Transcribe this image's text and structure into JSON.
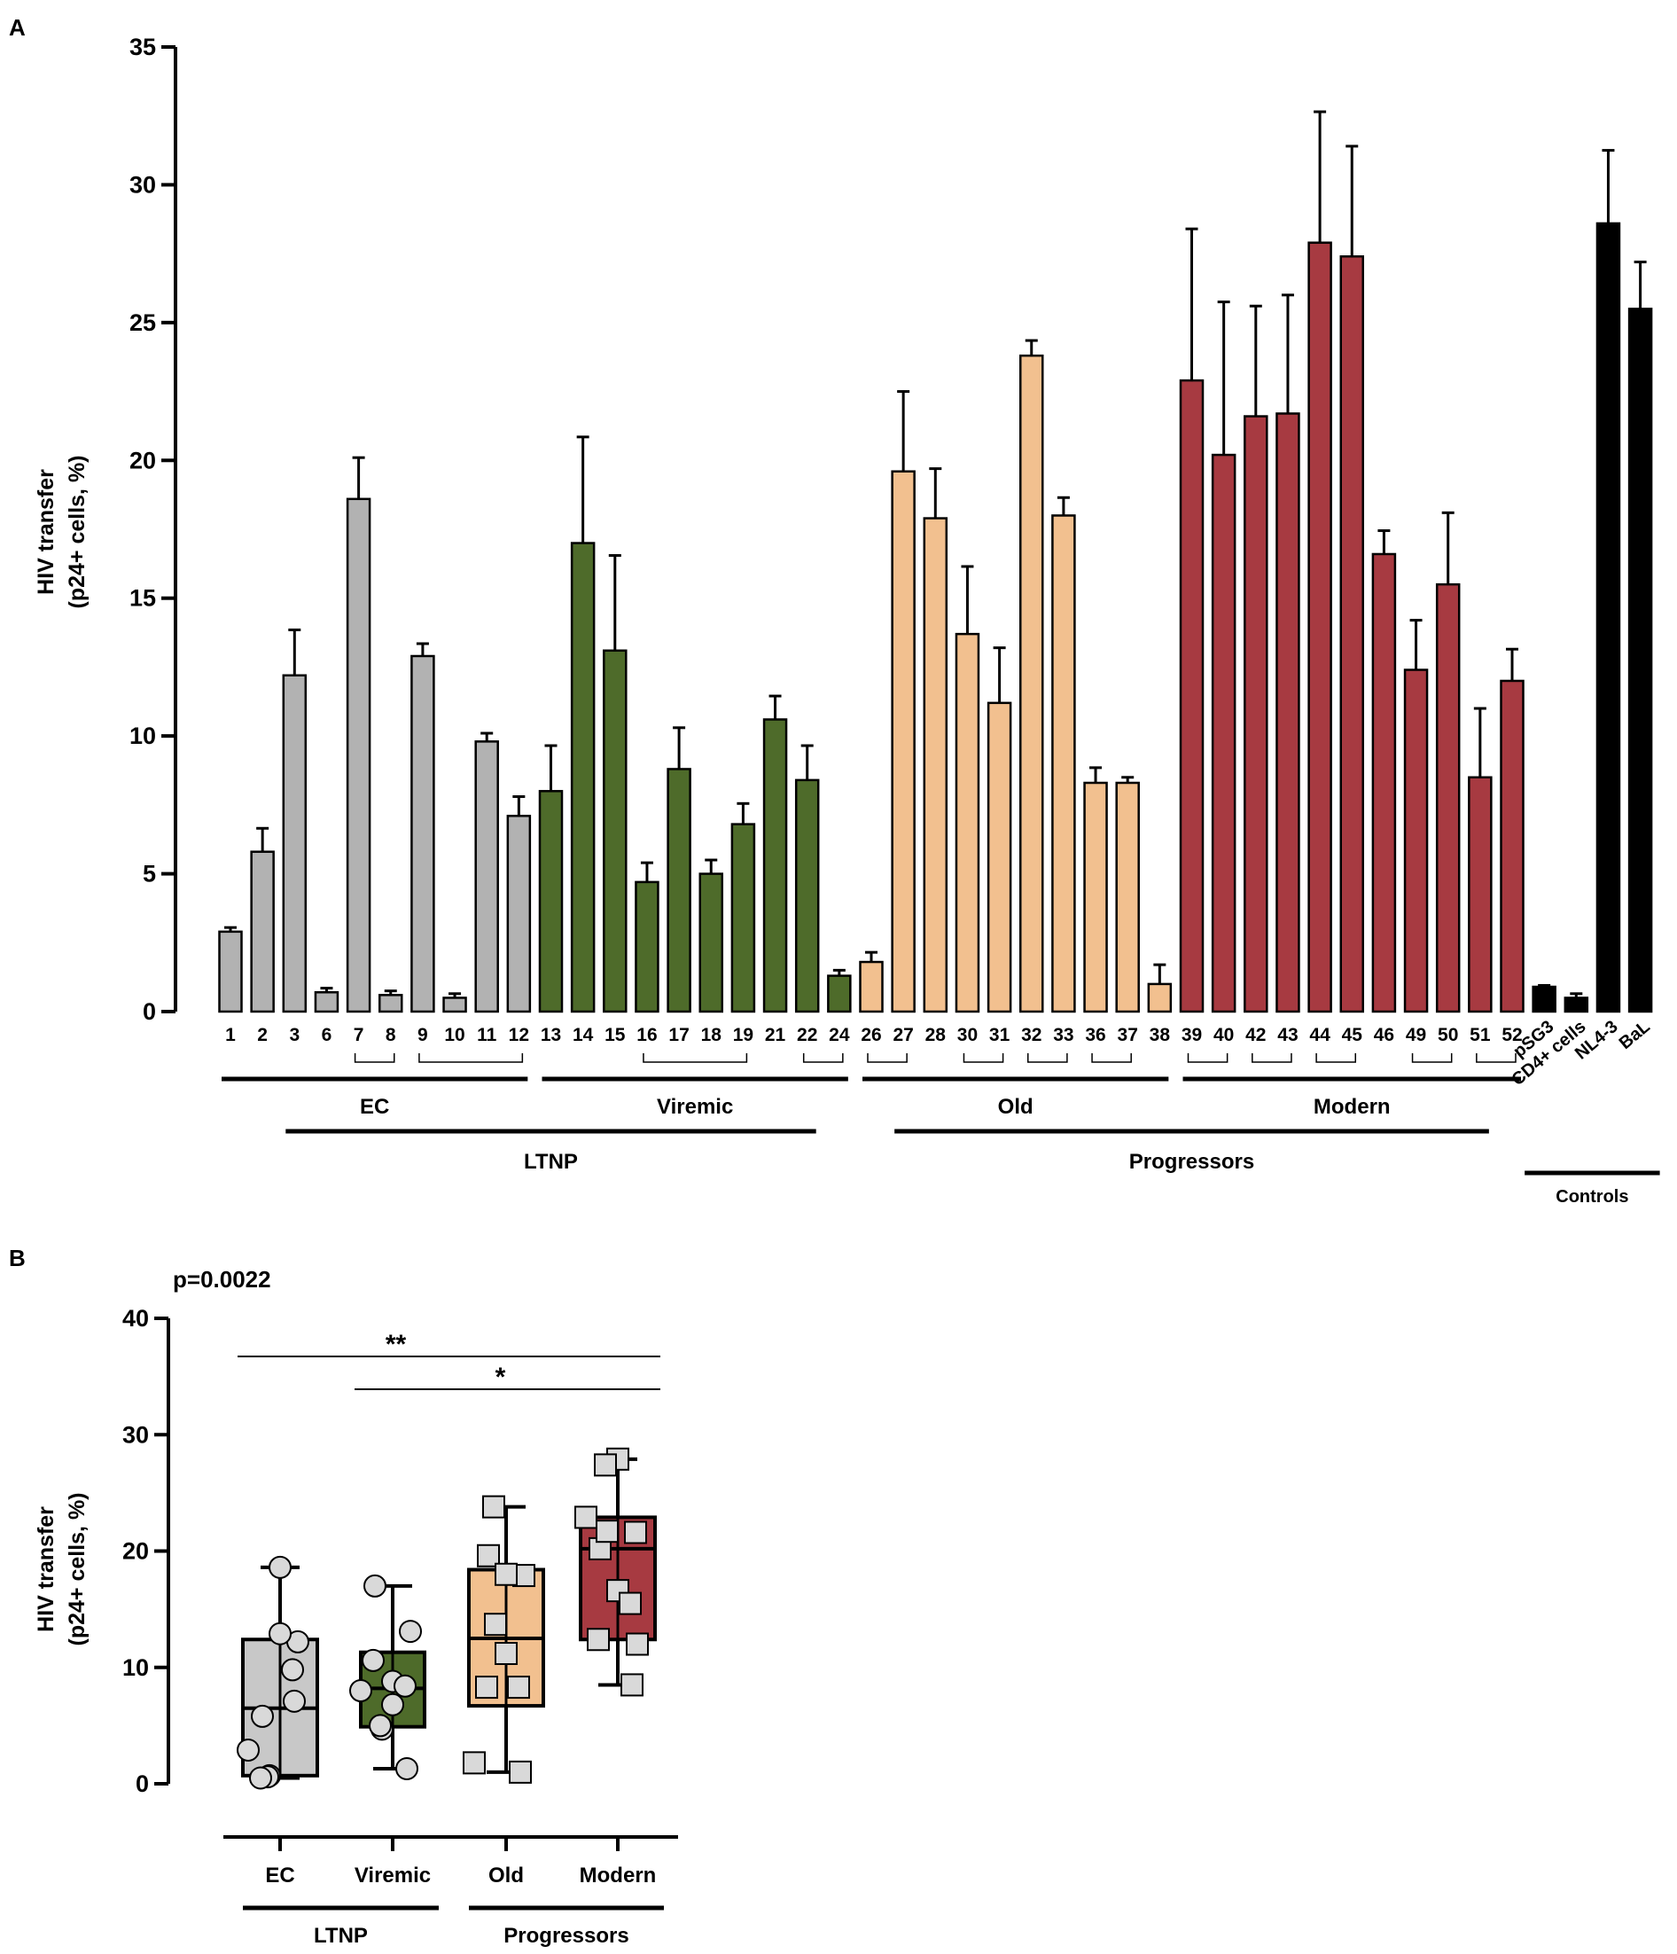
{
  "chart_data": [
    {
      "type": "bar",
      "panel": "A",
      "ylabel_line1": "HIV transfer",
      "ylabel_line2": "(p24+ cells, %)",
      "ylim": [
        0,
        35
      ],
      "yticks": [
        "0",
        "5",
        "10",
        "15",
        "20",
        "25",
        "30",
        "35"
      ],
      "colors": {
        "EC": "#b2b2b2",
        "Viremic": "#4e6b2a",
        "Old": "#f2c08f",
        "Modern": "#a73a41",
        "Controls": "#000000"
      },
      "bars": [
        {
          "label": "1",
          "value": 2.9,
          "err": 0.15,
          "group": "EC"
        },
        {
          "label": "2",
          "value": 5.8,
          "err": 0.85,
          "group": "EC"
        },
        {
          "label": "3",
          "value": 12.2,
          "err": 1.65,
          "group": "EC"
        },
        {
          "label": "6",
          "value": 0.7,
          "err": 0.15,
          "group": "EC"
        },
        {
          "label": "7",
          "value": 18.6,
          "err": 1.5,
          "group": "EC"
        },
        {
          "label": "8",
          "value": 0.6,
          "err": 0.15,
          "group": "EC"
        },
        {
          "label": "9",
          "value": 12.9,
          "err": 0.45,
          "group": "EC"
        },
        {
          "label": "10",
          "value": 0.5,
          "err": 0.15,
          "group": "EC"
        },
        {
          "label": "11",
          "value": 9.8,
          "err": 0.3,
          "group": "EC"
        },
        {
          "label": "12",
          "value": 7.1,
          "err": 0.7,
          "group": "EC"
        },
        {
          "label": "13",
          "value": 8.0,
          "err": 1.65,
          "group": "Viremic"
        },
        {
          "label": "14",
          "value": 17.0,
          "err": 3.85,
          "group": "Viremic"
        },
        {
          "label": "15",
          "value": 13.1,
          "err": 3.45,
          "group": "Viremic"
        },
        {
          "label": "16",
          "value": 4.7,
          "err": 0.7,
          "group": "Viremic"
        },
        {
          "label": "17",
          "value": 8.8,
          "err": 1.5,
          "group": "Viremic"
        },
        {
          "label": "18",
          "value": 5.0,
          "err": 0.5,
          "group": "Viremic"
        },
        {
          "label": "19",
          "value": 6.8,
          "err": 0.75,
          "group": "Viremic"
        },
        {
          "label": "21",
          "value": 10.6,
          "err": 0.85,
          "group": "Viremic"
        },
        {
          "label": "22",
          "value": 8.4,
          "err": 1.25,
          "group": "Viremic"
        },
        {
          "label": "24",
          "value": 1.3,
          "err": 0.2,
          "group": "Viremic"
        },
        {
          "label": "26",
          "value": 1.8,
          "err": 0.35,
          "group": "Old"
        },
        {
          "label": "27",
          "value": 19.6,
          "err": 2.9,
          "group": "Old"
        },
        {
          "label": "28",
          "value": 17.9,
          "err": 1.8,
          "group": "Old"
        },
        {
          "label": "30",
          "value": 13.7,
          "err": 2.45,
          "group": "Old"
        },
        {
          "label": "31",
          "value": 11.2,
          "err": 2.0,
          "group": "Old"
        },
        {
          "label": "32",
          "value": 23.8,
          "err": 0.55,
          "group": "Old"
        },
        {
          "label": "33",
          "value": 18.0,
          "err": 0.65,
          "group": "Old"
        },
        {
          "label": "36",
          "value": 8.3,
          "err": 0.55,
          "group": "Old"
        },
        {
          "label": "37",
          "value": 8.3,
          "err": 0.2,
          "group": "Old"
        },
        {
          "label": "38",
          "value": 1.0,
          "err": 0.7,
          "group": "Old"
        },
        {
          "label": "39",
          "value": 22.9,
          "err": 5.5,
          "group": "Modern"
        },
        {
          "label": "40",
          "value": 20.2,
          "err": 5.55,
          "group": "Modern"
        },
        {
          "label": "42",
          "value": 21.6,
          "err": 4.0,
          "group": "Modern"
        },
        {
          "label": "43",
          "value": 21.7,
          "err": 4.3,
          "group": "Modern"
        },
        {
          "label": "44",
          "value": 27.9,
          "err": 4.75,
          "group": "Modern"
        },
        {
          "label": "45",
          "value": 27.4,
          "err": 4.0,
          "group": "Modern"
        },
        {
          "label": "46",
          "value": 16.6,
          "err": 0.85,
          "group": "Modern"
        },
        {
          "label": "49",
          "value": 12.4,
          "err": 1.8,
          "group": "Modern"
        },
        {
          "label": "50",
          "value": 15.5,
          "err": 2.6,
          "group": "Modern"
        },
        {
          "label": "51",
          "value": 8.5,
          "err": 2.5,
          "group": "Modern"
        },
        {
          "label": "52",
          "value": 12.0,
          "err": 1.15,
          "group": "Modern"
        },
        {
          "label": "pSG3",
          "value": 0.9,
          "err": 0.05,
          "group": "Controls"
        },
        {
          "label": "CD4+ cells",
          "value": 0.5,
          "err": 0.15,
          "group": "Controls"
        },
        {
          "label": "NL4-3",
          "value": 28.6,
          "err": 2.65,
          "group": "Controls"
        },
        {
          "label": "BaL",
          "value": 25.5,
          "err": 1.7,
          "group": "Controls"
        }
      ],
      "pair_brackets": [
        [
          "7",
          "8"
        ],
        [
          "9",
          "12"
        ],
        [
          "16",
          "19"
        ],
        [
          "22",
          "24"
        ],
        [
          "26",
          "27"
        ],
        [
          "30",
          "31"
        ],
        [
          "32",
          "33"
        ],
        [
          "36",
          "37"
        ],
        [
          "39",
          "40"
        ],
        [
          "42",
          "43"
        ],
        [
          "44",
          "45"
        ],
        [
          "49",
          "50"
        ],
        [
          "51",
          "52"
        ]
      ],
      "group_labels": [
        {
          "label": "EC",
          "from": "1",
          "to": "12"
        },
        {
          "label": "Viremic",
          "from": "13",
          "to": "24"
        },
        {
          "label": "Old",
          "from": "26",
          "to": "38"
        },
        {
          "label": "Modern",
          "from": "39",
          "to": "52"
        }
      ],
      "super_labels": [
        {
          "label": "LTNP",
          "from": "3",
          "to": "22"
        },
        {
          "label": "Progressors",
          "from": "27",
          "to": "51"
        },
        {
          "label": "Controls",
          "from": "pSG3",
          "to": "BaL"
        }
      ]
    },
    {
      "type": "box",
      "panel": "B",
      "ylabel_line1": "HIV transfer",
      "ylabel_line2": "(p24+ cells, %)",
      "ylim": [
        0,
        40
      ],
      "yticks": [
        "0",
        "10",
        "20",
        "30",
        "40"
      ],
      "stat_text": "p=0.0022",
      "groups": [
        {
          "name": "EC",
          "color": "#c8c8c8",
          "marker": "circle",
          "min": 0.5,
          "q1": 0.7,
          "median": 6.5,
          "q3": 12.4,
          "max": 18.6,
          "points": [
            2.9,
            5.8,
            12.2,
            0.7,
            18.6,
            0.6,
            12.9,
            0.5,
            9.8,
            7.1
          ]
        },
        {
          "name": "Viremic",
          "color": "#4e6b2a",
          "marker": "circle",
          "min": 1.3,
          "q1": 4.9,
          "median": 8.2,
          "q3": 11.3,
          "max": 17.0,
          "points": [
            8.0,
            17.0,
            13.1,
            4.7,
            8.8,
            5.0,
            6.8,
            10.6,
            8.4,
            1.3
          ]
        },
        {
          "name": "Old",
          "color": "#f2c08f",
          "marker": "square",
          "min": 1.0,
          "q1": 6.7,
          "median": 12.5,
          "q3": 18.4,
          "max": 23.8,
          "points": [
            1.8,
            19.6,
            17.9,
            13.7,
            11.2,
            23.8,
            18.0,
            8.3,
            8.3,
            1.0
          ]
        },
        {
          "name": "Modern",
          "color": "#a73a41",
          "marker": "square",
          "min": 8.5,
          "q1": 12.4,
          "median": 20.2,
          "q3": 22.9,
          "max": 27.9,
          "points": [
            22.9,
            20.2,
            21.6,
            21.7,
            27.9,
            27.4,
            16.6,
            12.4,
            15.5,
            8.5,
            12.0
          ]
        }
      ],
      "significance": [
        {
          "from": "EC",
          "to": "Modern",
          "label": "**"
        },
        {
          "from": "Viremic",
          "to": "Modern",
          "label": "*"
        }
      ],
      "super_labels": [
        {
          "label": "LTNP",
          "groups": [
            "EC",
            "Viremic"
          ]
        },
        {
          "label": "Progressors",
          "groups": [
            "Old",
            "Modern"
          ]
        }
      ]
    }
  ]
}
